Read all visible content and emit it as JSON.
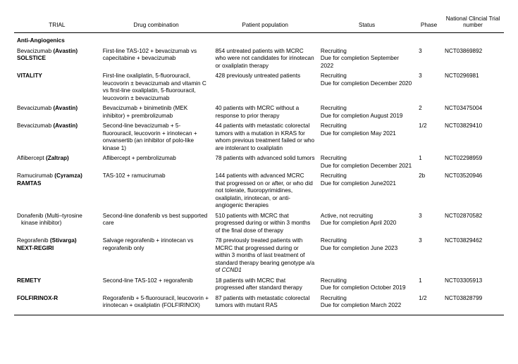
{
  "headers": {
    "trial": "TRIAL",
    "drug": "Drug combination",
    "pop": "Patient population",
    "status": "Status",
    "phase": "Phase",
    "nct": "National Clincial Trial number"
  },
  "section": "Anti-Angiogenics",
  "rows": [
    {
      "trial_html": "<span class='line'>Bevacizumab <span class='b'>(Avastin)</span></span><span class='line b'>SOLSTICE</span>",
      "drug": "First-line TAS-102 + bevacizumab vs capecitabine + bevacizumab",
      "pop": "854 untreated patients with MCRC who were not candidates for irinotecan or oxaliplatin therapy",
      "status_html": "Recruiting<br>Due for completion September 2022",
      "phase": "3",
      "nct": "NCT03869892"
    },
    {
      "trial_html": "<span class='line b'>VITALITY</span>",
      "drug": "First-line oxaliplatin, 5-fluorouracil, leucovorin ± bevacizumab and vitamin C vs first-line oxaliplatin, 5-fluorouracil, leucovorin ± bevacizumab",
      "pop": "428 previously untreated patients",
      "status_html": "Recruiting<br>Due for completion December 2020",
      "phase": "3",
      "nct": "NCT0296981"
    },
    {
      "trial_html": "<span class='line'>Bevacizumab <span class='b'>(Avastin)</span></span>",
      "drug": "Bevacizumab + binimetinib (MEK inhibitor) + prembrolizumab",
      "pop": "40 patients with MCRC without a response to prior therapy",
      "status_html": "Recruiting<br>Due for completion August 2019",
      "phase": "2",
      "nct": "NCT03475004"
    },
    {
      "trial_html": "<span class='line'>Bevacizumab <span class='b'>(Avastin)</span></span>",
      "drug": "Second-line bevacizumab + 5-fluorouracil, leucovorin + irinotecan + onvansertib (an inhibitor of polo-like kinase 1)",
      "pop": "44 patients with metastatic colorectal tumors with a mutation in KRAS for whom previous treatment failed or who are intolerant to oxaliplatin",
      "status_html": "Recruiting<br>Due for completion May 2021",
      "phase": "1/2",
      "nct": "NCT03829410"
    },
    {
      "trial_html": "<span class='line'>Aflibercept <span class='b'>(Zaltrap)</span></span>",
      "drug": "Aflibercept + pembrolizumab",
      "pop": "78 patients with advanced solid tumors",
      "status_html": "Recruiting<br>Due for completion December 2021",
      "phase": "1",
      "nct": "NCT02298959"
    },
    {
      "trial_html": "<span class='line'>Ramucirumab <span class='b'>(Cyramza)</span></span><span class='line b'>RAMTAS</span>",
      "drug": "TAS-102 + ramucirumab",
      "pop": "144 patients with advanced MCRC that progressed on or after, or who did not tolerate, fluoropyrimidines, oxaliplatin, irinotecan, or anti-angiogenic therapies",
      "status_html": "Recruiting<br>Due for completion June2021",
      "phase": "2b",
      "nct": "NCT03520946"
    },
    {
      "trial_html": "<span class='line'>Donafenib (Multi–tyrosine</span><span class='sub'>kinase inhibitor)</span>",
      "drug": "Second-line donafenib vs best supported care",
      "pop": "510 patients with MCRC that progressed during or within 3 months of the final dose of therapy",
      "status_html": "Active, not recruiting<br>Due for completion April 2020",
      "phase": "3",
      "nct": "NCT02870582"
    },
    {
      "trial_html": "<span class='line'>Regorafenib <span class='b'>(Stivarga)</span></span><span class='line b'>NEXT-REGIRI</span>",
      "drug": "Salvage regorafenib + irinotecan vs regorafenib only",
      "pop_html": "78 previously treated patients with MCRC that progressed during or within 3 months of last treatment of standard therapy bearing genotype a/a of <span class='i'>CCND1</span>",
      "status_html": "Recruiting<br>Due for completion June 2023",
      "phase": "3",
      "nct": "NCT03829462"
    },
    {
      "trial_html": "<span class='line b'>REMETY</span>",
      "drug": "Second-line TAS-102 + regorafenib",
      "pop": "18 patients with MCRC that progressed after standard therapy",
      "status_html": "Recruiting<br>Due for completion October 2019",
      "phase": "1",
      "nct": "NCT03305913"
    },
    {
      "trial_html": "<span class='line b'>FOLFIRINOX-R</span>",
      "drug": "Regorafenib + 5-fluorouracil, leucovorin + irinotecan + oxaliplatin (FOLFIRINOX)",
      "pop": "87 patients with metastatic colorectal tumors with mutant RAS",
      "status_html": "Recruiting<br>Due for completion March 2022",
      "phase": "1/2",
      "nct": "NCT03828799"
    }
  ]
}
